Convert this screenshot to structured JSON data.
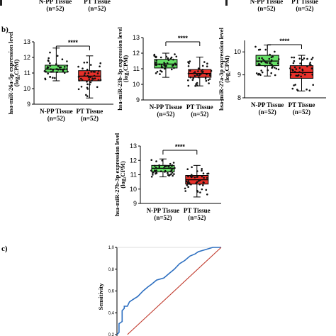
{
  "top_strip": {
    "labels": [
      "N-PP Tissue",
      "(n=52)",
      "PT Tissue",
      "(n=52)"
    ]
  },
  "panel_b": "b)",
  "panel_c": "c)",
  "roc_ylabel": "Sensitivity",
  "chart_data": [
    {
      "type": "box",
      "ylabel": "hsa-miR-26a-5p expression level",
      "yunit": "(log₂CPM)",
      "ylim": [
        9,
        13
      ],
      "yticks": [
        "9",
        "10",
        "11",
        "12",
        "13"
      ],
      "categories": [
        "N-PP Tissue",
        "PT Tissue"
      ],
      "n": [
        "(n=52)",
        "(n=52)"
      ],
      "significance": "****",
      "series": [
        {
          "min": 10.5,
          "q1": 11.05,
          "median": 11.25,
          "q3": 11.5,
          "max": 12.6,
          "color": "#66e066"
        },
        {
          "min": 9.4,
          "q1": 10.5,
          "median": 10.8,
          "q3": 11.15,
          "max": 12.1,
          "color": "#e8302a"
        }
      ]
    },
    {
      "type": "box",
      "ylabel": "hsa-miR-23b-3p expression level",
      "yunit": "(log₂CPM)",
      "ylim": [
        9,
        13
      ],
      "yticks": [
        "9",
        "10",
        "11",
        "12",
        "13"
      ],
      "categories": [
        "N-PP Tissue",
        "PT Tissue"
      ],
      "n": [
        "(n=52)",
        "(n=52)"
      ],
      "significance": "****",
      "series": [
        {
          "min": 10.45,
          "q1": 11.05,
          "median": 11.3,
          "q3": 11.6,
          "max": 12.0,
          "color": "#66e066"
        },
        {
          "min": 9.9,
          "q1": 10.45,
          "median": 10.7,
          "q3": 10.95,
          "max": 11.75,
          "color": "#e8302a"
        }
      ]
    },
    {
      "type": "box",
      "ylabel": "hsa-miR-27a-3p expression level",
      "yunit": "(log₂CPM)",
      "ylim": [
        8,
        10.5
      ],
      "yticks": [
        "8",
        "9",
        "10"
      ],
      "categories": [
        "N-PP Tissue",
        "PT Tissue"
      ],
      "n": [
        "(n=52)",
        "(n=52)"
      ],
      "significance": "****",
      "series": [
        {
          "min": 8.95,
          "q1": 9.4,
          "median": 9.6,
          "q3": 9.85,
          "max": 10.3,
          "color": "#66e066"
        },
        {
          "min": 8.3,
          "q1": 8.85,
          "median": 9.1,
          "q3": 9.4,
          "max": 9.85,
          "color": "#e8302a"
        }
      ]
    },
    {
      "type": "box",
      "ylabel": "hsa-miR-27b-3p expression level",
      "yunit": "(log₂CPM)",
      "ylim": [
        9,
        13
      ],
      "yticks": [
        "9",
        "10",
        "11",
        "12",
        "13"
      ],
      "categories": [
        "N-PP Tissue",
        "PT Tissue"
      ],
      "n": [
        "(n=52)",
        "(n=52)"
      ],
      "significance": "****",
      "series": [
        {
          "min": 10.85,
          "q1": 11.2,
          "median": 11.45,
          "q3": 11.65,
          "max": 12.1,
          "color": "#66e066"
        },
        {
          "min": 9.45,
          "q1": 10.35,
          "median": 10.65,
          "q3": 10.95,
          "max": 11.65,
          "color": "#e8302a"
        }
      ]
    },
    {
      "type": "line",
      "ylabel": "Sensitivity",
      "yticks": [
        "0,2",
        "0,4",
        "0,6",
        "0,8",
        "1,0"
      ],
      "ylim": [
        0.2,
        1.0
      ],
      "xlim": [
        0.0,
        1.0
      ],
      "series": [
        {
          "kind": "roc",
          "color": "#2d6fc0",
          "x": [
            0.0,
            0.02,
            0.02,
            0.05,
            0.05,
            0.07,
            0.07,
            0.1,
            0.12,
            0.15,
            0.2,
            0.25,
            0.3,
            0.33,
            0.38,
            0.45,
            0.5,
            0.55,
            0.6,
            0.65,
            0.7,
            0.75,
            0.78,
            0.85,
            0.92,
            1.0
          ],
          "y": [
            0.2,
            0.22,
            0.3,
            0.32,
            0.42,
            0.44,
            0.46,
            0.46,
            0.5,
            0.52,
            0.55,
            0.6,
            0.64,
            0.66,
            0.7,
            0.72,
            0.76,
            0.8,
            0.85,
            0.88,
            0.92,
            0.94,
            0.96,
            0.98,
            1.0,
            1.0
          ]
        },
        {
          "kind": "reference",
          "color": "#c0392b",
          "x": [
            0.1,
            1.0
          ],
          "y": [
            0.2,
            1.0
          ]
        }
      ]
    }
  ]
}
